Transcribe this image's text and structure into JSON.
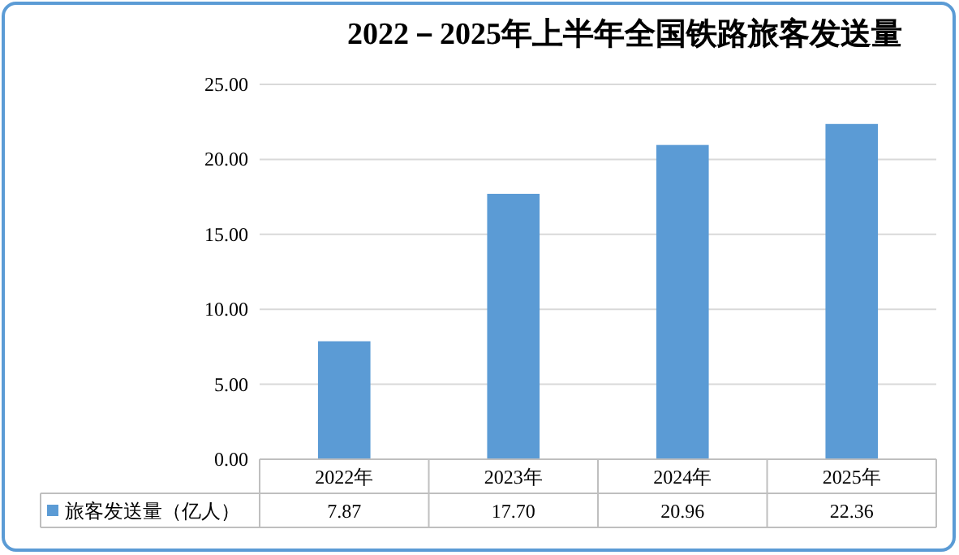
{
  "chart_data": {
    "type": "bar",
    "title": "2022－2025年上半年全国铁路旅客发送量",
    "categories": [
      "2022年",
      "2023年",
      "2024年",
      "2025年"
    ],
    "series": [
      {
        "name": "旅客发送量（亿人）",
        "color": "#5b9bd5",
        "values": [
          7.87,
          17.7,
          20.96,
          22.36
        ],
        "value_labels": [
          "7.87",
          "17.70",
          "20.96",
          "22.36"
        ]
      }
    ],
    "ylim": [
      0,
      25
    ],
    "yticks": [
      {
        "value": 0,
        "label": "0.00"
      },
      {
        "value": 5,
        "label": "5.00"
      },
      {
        "value": 10,
        "label": "10.00"
      },
      {
        "value": 15,
        "label": "15.00"
      },
      {
        "value": 20,
        "label": "20.00"
      },
      {
        "value": 25,
        "label": "25.00"
      }
    ],
    "grid": "y",
    "legend": "bottom"
  }
}
